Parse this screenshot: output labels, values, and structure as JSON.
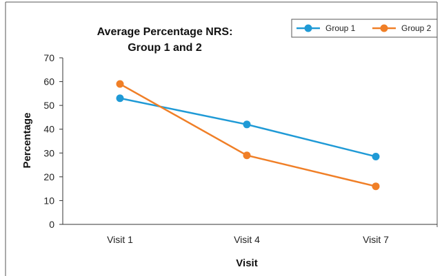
{
  "chart_data": {
    "type": "line",
    "title": "Average Percentage NRS:",
    "subtitle": "Group 1 and 2",
    "xlabel": "Visit",
    "ylabel": "Percentage",
    "categories": [
      "Visit 1",
      "Visit 4",
      "Visit 7"
    ],
    "ylim": [
      0,
      70
    ],
    "yticks": [
      "0",
      "10",
      "20",
      "30",
      "40",
      "50",
      "60",
      "70"
    ],
    "grid": false,
    "legend_placement": "top-right",
    "series": [
      {
        "name": "Group 1",
        "color": "#1f9ad6",
        "values": [
          53,
          42,
          28.5
        ]
      },
      {
        "name": "Group 2",
        "color": "#f07f27",
        "values": [
          59,
          29,
          16
        ]
      }
    ]
  }
}
